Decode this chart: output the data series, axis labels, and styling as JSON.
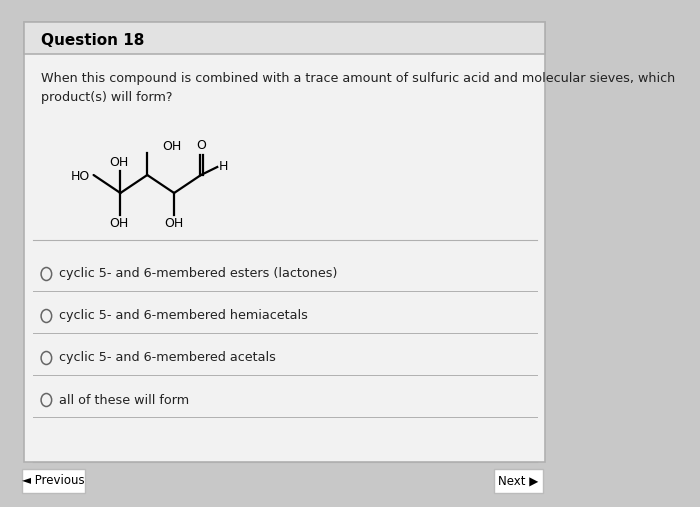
{
  "title": "Question 18",
  "question_text": "When this compound is combined with a trace amount of sulfuric acid and molecular sieves, which\nproduct(s) will form?",
  "options": [
    "cyclic 5- and 6-membered esters (lactones)",
    "cyclic 5- and 6-membered hemiacetals",
    "cyclic 5- and 6-membered acetals",
    "all of these will form"
  ],
  "bg_color": "#c8c8c8",
  "card_color": "#f2f2f2",
  "header_color": "#e2e2e2",
  "title_color": "#000000",
  "text_color": "#222222",
  "option_color": "#222222",
  "border_color": "#b0b0b0",
  "btn_color": "#ffffff",
  "btn_border": "#bbbbbb"
}
